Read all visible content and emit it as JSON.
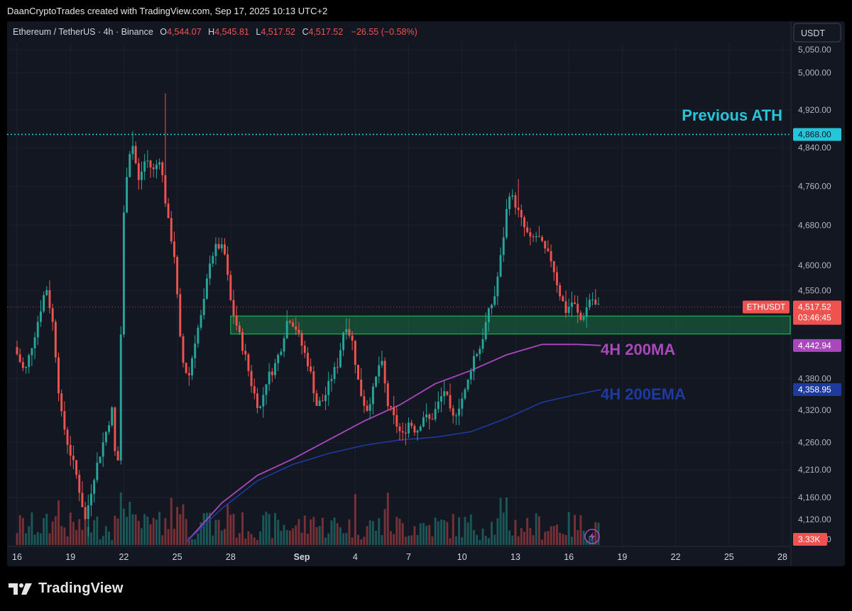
{
  "header": {
    "credit": "DaanCryptoTrades created with TradingView.com, Sep 17, 2025 10:13 UTC+2"
  },
  "legend": {
    "symbol": "Ethereum / TetherUS · 4h · Binance",
    "o_label": "O",
    "o_value": "4,544.07",
    "h_label": "H",
    "h_value": "4,545.81",
    "l_label": "L",
    "l_value": "4,517.52",
    "c_label": "C",
    "c_value": "4,517.52",
    "change": "−26.55 (−0.58%)"
  },
  "currency_button": "USDT",
  "footer": {
    "logo_text": "TradingView"
  },
  "colors": {
    "up": "#26a69a",
    "down": "#ef5350",
    "ath": "#26c6da",
    "ma": "#ab47bc",
    "ema": "#1e3a9e",
    "zone": "#22c55e",
    "price_line": "#ef5350"
  },
  "chart_data": {
    "type": "candlestick",
    "y_axis": {
      "scale": "log",
      "ticks": [
        4160,
        4210,
        4260,
        4320,
        4380,
        4442.94,
        4550,
        4600,
        4680,
        4760,
        4840,
        4920,
        5000,
        5050
      ],
      "tick_labels": [
        "4,160.00",
        "4,210.00",
        "4,260.00",
        "4,320.00",
        "4,380.00",
        "",
        "4,550.00",
        "4,600.00",
        "4,680.00",
        "4,760.00",
        "4,840.00",
        "4,920.00",
        "5,000.00",
        "5,050.00"
      ],
      "extra_labels": [
        "4,120.00",
        "4,080.00"
      ]
    },
    "x_axis": {
      "ticks": [
        {
          "label": "16",
          "day": 16
        },
        {
          "label": "19",
          "day": 19
        },
        {
          "label": "22",
          "day": 22
        },
        {
          "label": "25",
          "day": 25
        },
        {
          "label": "28",
          "day": 28
        },
        {
          "label": "Sep",
          "day": 32
        },
        {
          "label": "4",
          "day": 35
        },
        {
          "label": "7",
          "day": 38
        },
        {
          "label": "10",
          "day": 41
        },
        {
          "label": "13",
          "day": 44
        },
        {
          "label": "16",
          "day": 47
        },
        {
          "label": "19",
          "day": 50
        },
        {
          "label": "22",
          "day": 53
        },
        {
          "label": "25",
          "day": 56
        },
        {
          "label": "28",
          "day": 59
        }
      ]
    },
    "price_path": [
      [
        16,
        4440
      ],
      [
        16.6,
        4390
      ],
      [
        17.2,
        4470
      ],
      [
        17.8,
        4560
      ],
      [
        18.2,
        4480
      ],
      [
        18.6,
        4320
      ],
      [
        19.0,
        4260
      ],
      [
        19.5,
        4200
      ],
      [
        20.0,
        4120
      ],
      [
        20.5,
        4200
      ],
      [
        21.0,
        4260
      ],
      [
        21.5,
        4320
      ],
      [
        21.8,
        4180
      ],
      [
        22.2,
        4750
      ],
      [
        22.6,
        4860
      ],
      [
        23.0,
        4770
      ],
      [
        23.4,
        4820
      ],
      [
        23.8,
        4790
      ],
      [
        24.2,
        4820
      ],
      [
        24.6,
        4700
      ],
      [
        25.0,
        4620
      ],
      [
        25.4,
        4420
      ],
      [
        25.8,
        4380
      ],
      [
        26.2,
        4460
      ],
      [
        26.6,
        4510
      ],
      [
        27.0,
        4610
      ],
      [
        27.4,
        4640
      ],
      [
        27.8,
        4630
      ],
      [
        28.2,
        4520
      ],
      [
        28.6,
        4470
      ],
      [
        29.0,
        4420
      ],
      [
        29.4,
        4360
      ],
      [
        29.8,
        4320
      ],
      [
        30.2,
        4380
      ],
      [
        30.6,
        4400
      ],
      [
        31.0,
        4440
      ],
      [
        31.4,
        4500
      ],
      [
        31.8,
        4480
      ],
      [
        32.2,
        4440
      ],
      [
        32.6,
        4400
      ],
      [
        33.0,
        4330
      ],
      [
        33.4,
        4340
      ],
      [
        33.8,
        4380
      ],
      [
        34.2,
        4410
      ],
      [
        34.6,
        4490
      ],
      [
        35.0,
        4450
      ],
      [
        35.4,
        4360
      ],
      [
        35.8,
        4320
      ],
      [
        36.2,
        4360
      ],
      [
        36.6,
        4420
      ],
      [
        37.0,
        4330
      ],
      [
        37.4,
        4300
      ],
      [
        37.8,
        4270
      ],
      [
        38.2,
        4300
      ],
      [
        38.6,
        4280
      ],
      [
        39.0,
        4310
      ],
      [
        39.4,
        4300
      ],
      [
        39.8,
        4330
      ],
      [
        40.2,
        4360
      ],
      [
        40.6,
        4300
      ],
      [
        41.0,
        4330
      ],
      [
        41.4,
        4360
      ],
      [
        41.8,
        4420
      ],
      [
        42.2,
        4440
      ],
      [
        42.6,
        4500
      ],
      [
        43.0,
        4540
      ],
      [
        43.4,
        4630
      ],
      [
        43.8,
        4750
      ],
      [
        44.2,
        4720
      ],
      [
        44.6,
        4680
      ],
      [
        45.0,
        4650
      ],
      [
        45.4,
        4660
      ],
      [
        45.8,
        4630
      ],
      [
        46.2,
        4610
      ],
      [
        46.6,
        4550
      ],
      [
        47.0,
        4510
      ],
      [
        47.4,
        4530
      ],
      [
        47.8,
        4490
      ],
      [
        48.1,
        4510
      ],
      [
        48.4,
        4540
      ],
      [
        48.7,
        4517.52
      ]
    ],
    "wick_extremes": [
      {
        "day": 24.3,
        "high": 4955
      },
      {
        "day": 22.5,
        "high": 4875
      },
      {
        "day": 20.0,
        "low": 4090
      },
      {
        "day": 44.2,
        "high": 4775
      }
    ],
    "levels": [
      {
        "name": "Previous ATH",
        "price": 4868.0,
        "label": "4,868.00",
        "style": "dotted"
      },
      {
        "name": "ETHUSDT",
        "price": 4517.52,
        "label": "4,517.52",
        "countdown": "03:46:45",
        "style": "dotted"
      }
    ],
    "zone": {
      "from_day": 28.0,
      "to_day": 61,
      "top": 4500,
      "bottom": 4465
    },
    "indicators": [
      {
        "name": "4H 200MA",
        "last_label": "4,442.94",
        "points": [
          [
            25.5,
            4080
          ],
          [
            27.5,
            4150
          ],
          [
            29.5,
            4200
          ],
          [
            31.5,
            4230
          ],
          [
            33.5,
            4265
          ],
          [
            35.5,
            4300
          ],
          [
            37.5,
            4330
          ],
          [
            39.5,
            4370
          ],
          [
            41.5,
            4395
          ],
          [
            43.5,
            4425
          ],
          [
            45.5,
            4445
          ],
          [
            47.5,
            4445
          ],
          [
            48.8,
            4442.94
          ]
        ]
      },
      {
        "name": "4H 200EMA",
        "last_label": "4,358.95",
        "points": [
          [
            25.5,
            4080
          ],
          [
            27.5,
            4140
          ],
          [
            29.5,
            4190
          ],
          [
            31.5,
            4220
          ],
          [
            33.5,
            4240
          ],
          [
            35.5,
            4255
          ],
          [
            37.5,
            4265
          ],
          [
            39.5,
            4270
          ],
          [
            41.5,
            4280
          ],
          [
            43.5,
            4305
          ],
          [
            45.5,
            4335
          ],
          [
            47.5,
            4350
          ],
          [
            48.8,
            4358.95
          ]
        ]
      }
    ],
    "volume_label": "3.33K",
    "annotations": [
      {
        "text": "Previous ATH",
        "color": "#26c6da"
      },
      {
        "text": "4H 200MA",
        "color": "#ab47bc"
      },
      {
        "text": "4H 200EMA",
        "color": "#1e3a9e"
      }
    ],
    "price_tag": "ETHUSDT"
  }
}
